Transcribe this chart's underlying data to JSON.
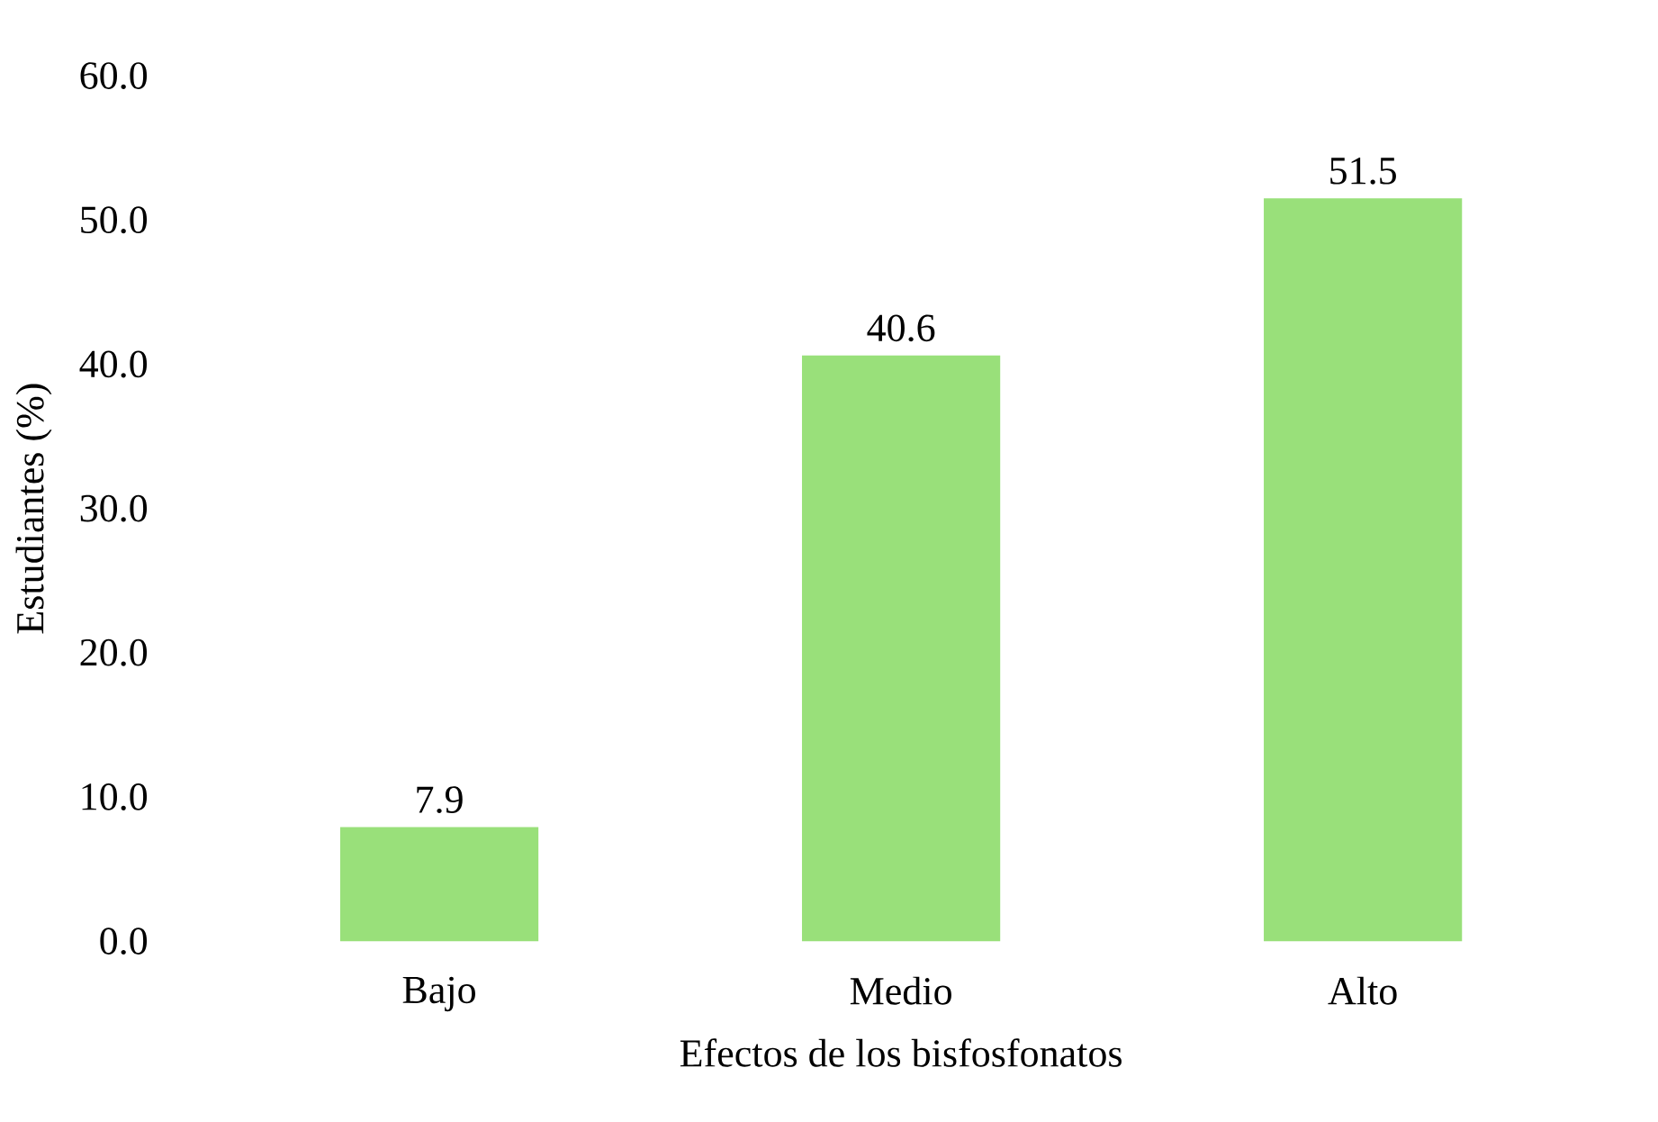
{
  "chart_data": {
    "type": "bar",
    "xlabel": "Efectos de los bisfosfonatos",
    "ylabel": "Estudiantes (%)",
    "categories": [
      "Bajo",
      "Medio",
      "Alto"
    ],
    "values": [
      7.9,
      40.6,
      51.5
    ],
    "color": "#99e07a",
    "data_labels": true,
    "ylim": [
      0,
      60
    ],
    "yticks": [
      {
        "value": 0,
        "label": "0.0"
      },
      {
        "value": 10,
        "label": "10.0"
      },
      {
        "value": 20,
        "label": "20.0"
      },
      {
        "value": 30,
        "label": "30.0"
      },
      {
        "value": 40,
        "label": "40.0"
      },
      {
        "value": 50,
        "label": "50.0"
      },
      {
        "value": 60,
        "label": "60.0"
      }
    ],
    "grid": false
  }
}
